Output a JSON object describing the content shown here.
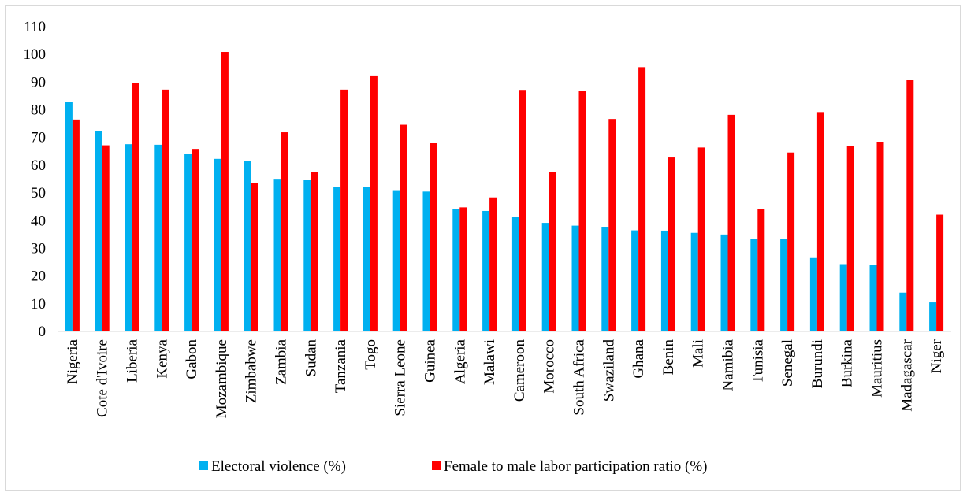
{
  "chart_data": {
    "type": "bar",
    "title": "",
    "xlabel": "",
    "ylabel": "",
    "ylim": [
      0,
      110
    ],
    "yticks": [
      0,
      10,
      20,
      30,
      40,
      50,
      60,
      70,
      80,
      90,
      100,
      110
    ],
    "grid": false,
    "legend_position": "bottom",
    "categories": [
      "Nigeria",
      "Cote d'Ivoire",
      "Liberia",
      "Kenya",
      "Gabon",
      "Mozambique",
      "Zimbabwe",
      "Zambia",
      "Sudan",
      "Tanzania",
      "Togo",
      "Sierra Leone",
      "Guinea",
      "Algeria",
      "Malawi",
      "Cameroon",
      "Morocco",
      "South Africa",
      "Swaziland",
      "Ghana",
      "Benin",
      "Mali",
      "Namibia",
      "Tunisia",
      "Senegal",
      "Burundi",
      "Burkina",
      "Mauritius",
      "Madagascar",
      "Niger"
    ],
    "series": [
      {
        "name": "Electoral violence (%)",
        "color": "#00b0f0",
        "values": [
          82.8,
          72.2,
          67.6,
          67.4,
          64.2,
          62.3,
          61.4,
          55.1,
          54.6,
          52.3,
          52.1,
          51.0,
          50.5,
          44.2,
          43.5,
          41.3,
          39.2,
          38.2,
          37.8,
          36.5,
          36.4,
          35.6,
          35.0,
          33.5,
          33.4,
          26.5,
          24.3,
          23.9,
          14.0,
          10.5
        ]
      },
      {
        "name": "Female to male labor participation ratio (%)",
        "color": "#ff0000",
        "values": [
          76.5,
          67.2,
          89.7,
          87.3,
          65.9,
          100.9,
          53.7,
          71.9,
          57.5,
          87.3,
          92.4,
          74.6,
          68.0,
          44.8,
          48.4,
          87.2,
          57.6,
          86.7,
          76.7,
          95.4,
          62.8,
          66.4,
          78.2,
          44.2,
          64.6,
          79.2,
          67.0,
          68.5,
          90.9,
          42.2
        ]
      }
    ]
  }
}
